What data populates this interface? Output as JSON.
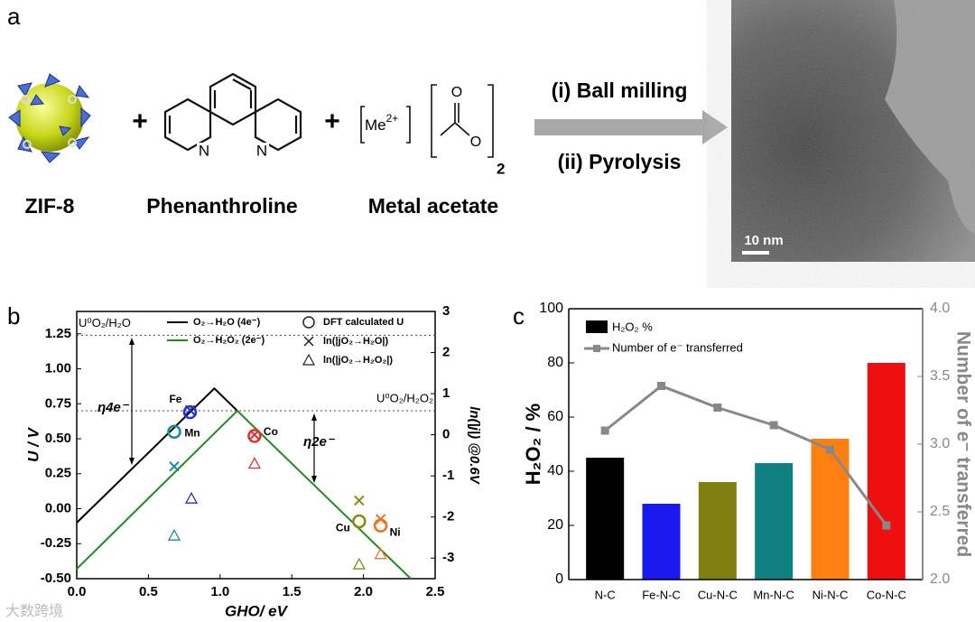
{
  "panel_a": {
    "label": "a",
    "reactants": [
      {
        "name": "ZIF-8"
      },
      {
        "name": "Phenanthroline",
        "atoms": [
          "N",
          "N"
        ]
      },
      {
        "name": "Metal acetate",
        "cation": {
          "base": "Me",
          "charge": "2+"
        },
        "atoms": [
          "O",
          "O"
        ],
        "subscript": "2"
      }
    ],
    "plus": [
      "+",
      "+"
    ],
    "steps": [
      "(i) Ball milling",
      "(ii) Pyrolysis"
    ],
    "scale_bar": "10 nm"
  },
  "watermark": "大数跨境",
  "chart_data": [
    {
      "type": "line",
      "panel_label": "b",
      "x_label": "GHO/ eV",
      "y_label": "U / V",
      "y2_label": "ln(|j|) @0.6V",
      "xlim": [
        0,
        2.5
      ],
      "xticks": [
        {
          "value": 0,
          "label": "0.0"
        },
        0.5,
        {
          "value": 1,
          "label": "1.0"
        },
        1.5,
        {
          "value": 2,
          "label": "2.0"
        },
        2.5
      ],
      "ylim": [
        -0.5,
        1.41
      ],
      "yticks": [
        {
          "value": -0.5,
          "label": "-0.50"
        },
        -0.25,
        {
          "value": 0,
          "label": "0.00"
        },
        0.25,
        {
          "value": 0.5,
          "label": "0.50"
        },
        0.75,
        {
          "value": 1,
          "label": "1.00"
        },
        1.25
      ],
      "y2lim": [
        -3.5,
        3
      ],
      "y2ticks": [
        -3,
        -2,
        -1,
        0,
        1,
        2,
        3
      ],
      "series": [
        {
          "name": "O₂→H₂O (4e⁻)",
          "style": "line",
          "color": "#000000",
          "x": [
            0,
            0.96,
            1.12
          ],
          "values": [
            -0.1,
            0.86,
            0.7
          ]
        },
        {
          "name": "O₂→H₂O₂ (2e⁻)",
          "style": "line",
          "color": "#1e8c1e",
          "x": [
            0,
            1.12,
            2.33
          ],
          "values": [
            -0.43,
            0.7,
            -0.5
          ]
        },
        {
          "name": "DFT calculated U",
          "style": "circle",
          "color": "#222222",
          "x": [
            0.79,
            0.68,
            1.24,
            1.97,
            2.12
          ],
          "values": [
            0.69,
            0.55,
            0.52,
            -0.09,
            -0.12
          ],
          "colors": [
            "#2233cc",
            "#1a8a99",
            "#e03030",
            "#8a8a10",
            "#f07020"
          ],
          "point_labels": [
            "Fe",
            "Mn",
            "Co",
            "Cu",
            "Ni"
          ]
        },
        {
          "name": "ln(|jO₂→H₂O|)",
          "style": "cross",
          "axis": "y2",
          "color": "#222222",
          "x": [
            0.79,
            0.68,
            1.24,
            1.97,
            2.12
          ],
          "values": [
            0.6,
            -0.77,
            0,
            -1.6,
            -2.05
          ],
          "colors": [
            "#2233cc",
            "#1a8a99",
            "#e03030",
            "#8a8a10",
            "#f07020"
          ]
        },
        {
          "name": "ln(|jO₂→H₂O₂|)",
          "style": "triangle",
          "axis": "y2",
          "color": "#222222",
          "x": [
            0.8,
            0.68,
            1.24,
            1.97,
            2.12
          ],
          "values": [
            -1.55,
            -2.45,
            -0.7,
            -3.15,
            -2.9
          ],
          "colors": [
            "#2233cc",
            "#1a8a99",
            "#e03030",
            "#8a8a10",
            "#f07020"
          ]
        }
      ],
      "reference_lines": [
        {
          "value": 1.24,
          "label": "U⁰O₂/H₂O"
        },
        {
          "value": 0.7,
          "label": "U⁰O₂/H₂O₂"
        }
      ],
      "annotations": [
        "η4e⁻",
        "η2e⁻"
      ]
    },
    {
      "type": "bar",
      "panel_label": "c",
      "y_label": "H₂O₂ / %",
      "y2_label": "Number of e⁻ transferred",
      "categories": [
        "N-C",
        "Fe-N-C",
        "Cu-N-C",
        "Mn-N-C",
        "Ni-N-C",
        "Co-N-C"
      ],
      "ylim": [
        0,
        100
      ],
      "yticks": [
        0,
        20,
        40,
        60,
        80,
        100
      ],
      "y2lim": [
        2,
        4
      ],
      "y2ticks": [
        {
          "value": 2,
          "label": "2.0"
        },
        2.5,
        {
          "value": 3,
          "label": "3.0"
        },
        3.5,
        {
          "value": 4,
          "label": "4.0"
        }
      ],
      "series": [
        {
          "name": "H₂O₂ %",
          "color": "#000000",
          "colors": [
            "#000000",
            "#1a1aee",
            "#808010",
            "#108080",
            "#ff8010",
            "#ee1010"
          ],
          "values": [
            45,
            28,
            36,
            43,
            52,
            80
          ]
        },
        {
          "name": "Number of e⁻ transferred",
          "color": "#888888",
          "axis": "y2",
          "values": [
            3.1,
            3.43,
            3.27,
            3.14,
            2.96,
            2.4
          ]
        }
      ]
    }
  ]
}
